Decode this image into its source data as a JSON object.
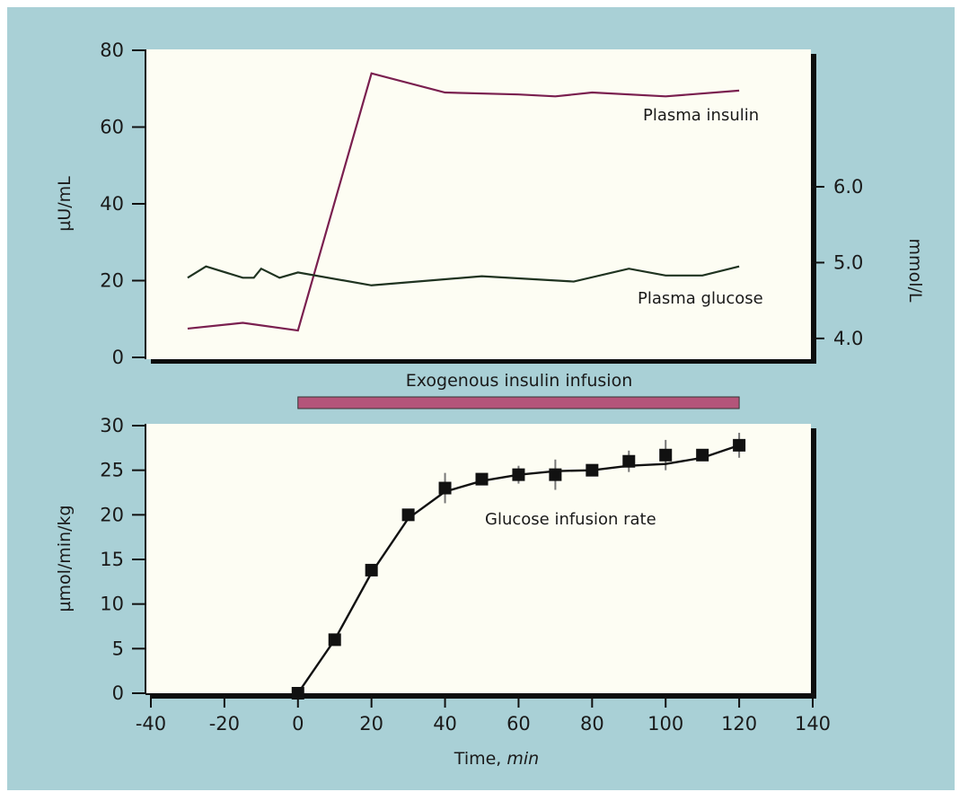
{
  "colors": {
    "background": "#a9d0d6",
    "panel": "#fdfdf3",
    "insulin": "#7a1f4f",
    "glucose": "#1f3320",
    "infusion_bar": "#b4557a",
    "rate": "#111111"
  },
  "chart_data": [
    {
      "type": "line",
      "ylabel": "µU/mL",
      "ylabel_right": "mmol/L",
      "ylim": [
        0,
        80
      ],
      "y_ticks": [
        "0",
        "20",
        "40",
        "60",
        "80"
      ],
      "right_ylim_mmol": [
        3.75,
        7.8
      ],
      "right_ticks": [
        "4.0",
        "5.0",
        "6.0"
      ],
      "series": [
        {
          "name": "Plasma insulin",
          "axis": "left",
          "x": [
            -30,
            -15,
            0,
            20,
            40,
            60,
            70,
            80,
            100,
            120
          ],
          "y": [
            7.5,
            9,
            7,
            74,
            69,
            68.5,
            68,
            69,
            68,
            69.5
          ]
        },
        {
          "name": "Plasma glucose",
          "axis": "right",
          "x": [
            -30,
            -25,
            -15,
            -12,
            -10,
            -5,
            0,
            20,
            50,
            75,
            90,
            100,
            110,
            120
          ],
          "y": [
            4.8,
            4.95,
            4.8,
            4.8,
            4.92,
            4.8,
            4.87,
            4.7,
            4.82,
            4.75,
            4.92,
            4.83,
            4.83,
            4.95
          ]
        }
      ]
    },
    {
      "type": "line",
      "annotation": "Exogenous insulin infusion",
      "infusion_range": [
        0,
        120
      ],
      "xlabel": "Time,",
      "xlabel_unit": "min",
      "ylabel": "µmol/min/kg",
      "xlim": [
        -40,
        140
      ],
      "x_ticks": [
        "-40",
        "-20",
        "0",
        "20",
        "40",
        "60",
        "80",
        "100",
        "120",
        "140"
      ],
      "ylim": [
        0,
        30
      ],
      "y_ticks": [
        "0",
        "5",
        "10",
        "15",
        "20",
        "25",
        "30"
      ],
      "series": [
        {
          "name": "Glucose infusion rate",
          "x": [
            0,
            10,
            20,
            30,
            40,
            50,
            60,
            70,
            80,
            90,
            100,
            110,
            120
          ],
          "y": [
            0,
            6,
            13.8,
            20,
            23,
            24,
            24.5,
            24.5,
            25,
            26,
            26.7,
            26.7,
            27.8
          ],
          "error": [
            0,
            0.4,
            0.5,
            0.6,
            1.7,
            0.5,
            1.0,
            1.7,
            0.5,
            1.2,
            1.7,
            0.4,
            1.4
          ],
          "smooth_fit": [
            0,
            6,
            13.5,
            19.6,
            22.6,
            23.8,
            24.5,
            24.9,
            25.0,
            25.5,
            25.7,
            26.4,
            27.8
          ]
        }
      ]
    }
  ]
}
